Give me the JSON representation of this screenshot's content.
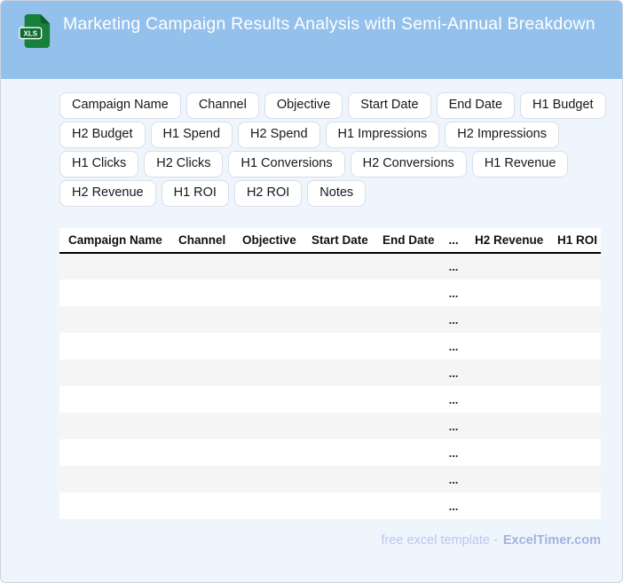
{
  "header": {
    "title": "Marketing Campaign Results Analysis with Semi-Annual Breakdown",
    "file_icon_label": "XLS"
  },
  "chips": [
    "Campaign Name",
    "Channel",
    "Objective",
    "Start Date",
    "End Date",
    "H1 Budget",
    "H2 Budget",
    "H1 Spend",
    "H2 Spend",
    "H1 Impressions",
    "H2 Impressions",
    "H1 Clicks",
    "H2 Clicks",
    "H1 Conversions",
    "H2 Conversions",
    "H1 Revenue",
    "H2 Revenue",
    "H1 ROI",
    "H2 ROI",
    "Notes"
  ],
  "table": {
    "columns": [
      "Campaign Name",
      "Channel",
      "Objective",
      "Start Date",
      "End Date",
      "...",
      "H2 Revenue",
      "H1 ROI"
    ],
    "row_count": 10,
    "placeholder": "...",
    "placeholder_col_index": 5
  },
  "footer": {
    "prefix": "free excel template -",
    "brand": "ExcelTimer.com"
  },
  "colors": {
    "header_bg": "#93c1ec",
    "body_bg": "#eff5fd",
    "row_alt": "#f5f5f5",
    "chip_border": "#d9dee8",
    "footer_text": "#bcc6ee",
    "footer_brand": "#a5b2e0",
    "icon_green": "#17803c"
  }
}
